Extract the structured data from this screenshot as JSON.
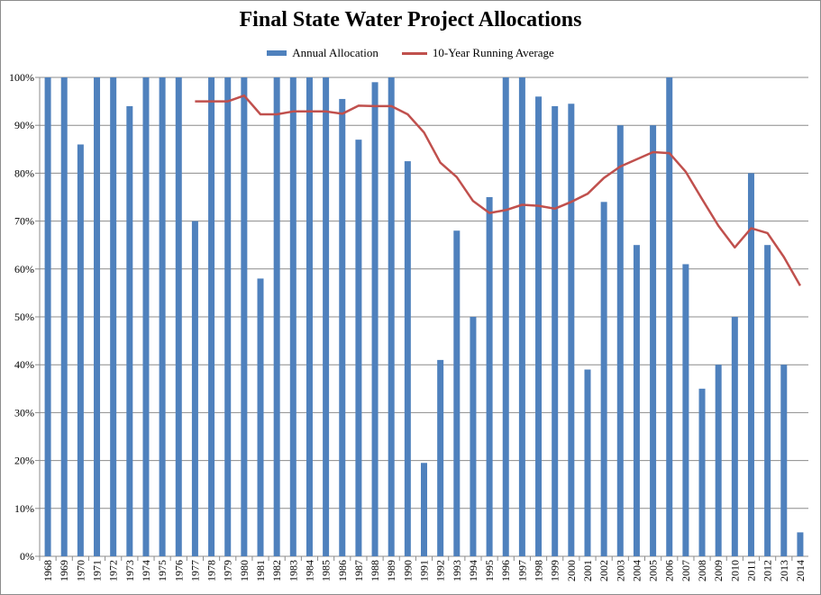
{
  "chart_data": {
    "type": "bar",
    "title": "Final State Water Project Allocations",
    "xlabel": "",
    "ylabel": "",
    "ylim": [
      0,
      100
    ],
    "yticks": [
      0,
      10,
      20,
      30,
      40,
      50,
      60,
      70,
      80,
      90,
      100
    ],
    "ytick_labels": [
      "0%",
      "10%",
      "20%",
      "30%",
      "40%",
      "50%",
      "60%",
      "70%",
      "80%",
      "90%",
      "100%"
    ],
    "grid": true,
    "legend_position": "top-center",
    "categories": [
      "1968",
      "1969",
      "1970",
      "1971",
      "1972",
      "1973",
      "1974",
      "1975",
      "1976",
      "1977",
      "1978",
      "1979",
      "1980",
      "1981",
      "1982",
      "1983",
      "1984",
      "1985",
      "1986",
      "1987",
      "1988",
      "1989",
      "1990",
      "1991",
      "1992",
      "1993",
      "1994",
      "1995",
      "1996",
      "1997",
      "1998",
      "1999",
      "2000",
      "2001",
      "2002",
      "2003",
      "2004",
      "2005",
      "2006",
      "2007",
      "2008",
      "2009",
      "2010",
      "2011",
      "2012",
      "2013",
      "2014"
    ],
    "series": [
      {
        "name": "Annual Allocation",
        "type": "bar",
        "color": "#4f81bd",
        "values": [
          100,
          100,
          86,
          100,
          100,
          94,
          100,
          100,
          100,
          70,
          100,
          100,
          100,
          58,
          100,
          100,
          100,
          100,
          95.5,
          87,
          99,
          100,
          82.5,
          19.5,
          41,
          68,
          50,
          75,
          100,
          100,
          96,
          94,
          94.5,
          39,
          74,
          90,
          65,
          90,
          100,
          61,
          35,
          40,
          50,
          80,
          65,
          40,
          5
        ]
      },
      {
        "name": "10-Year Running Average",
        "type": "line",
        "color": "#c0504d",
        "values": [
          null,
          null,
          null,
          null,
          null,
          null,
          null,
          null,
          null,
          95,
          95,
          95,
          96.2,
          92.3,
          92.3,
          92.9,
          92.9,
          92.9,
          92.4,
          94.1,
          94,
          94,
          92.3,
          88.5,
          82.2,
          79.2,
          74.2,
          71.7,
          72.3,
          73.4,
          73.2,
          72.6,
          74,
          75.7,
          79,
          81.4,
          82.9,
          84.4,
          84.2,
          80.3,
          74.6,
          69,
          64.5,
          68.5,
          67.5,
          62.5,
          56.5
        ]
      }
    ]
  }
}
